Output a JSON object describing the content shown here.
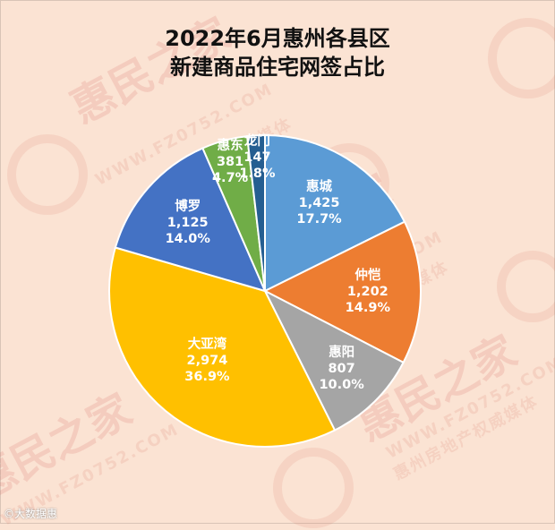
{
  "title": {
    "line1": "2022年6月惠州各县区",
    "line2": "新建商品住宅网签占比"
  },
  "chart_data": {
    "type": "pie",
    "title": "2022年6月惠州各县区新建商品住宅网签占比",
    "slices": [
      {
        "name": "惠城",
        "value": 1425,
        "value_label": "1,425",
        "percent": "17.7%",
        "color": "#5b9bd5"
      },
      {
        "name": "仲恺",
        "value": 1202,
        "value_label": "1,202",
        "percent": "14.9%",
        "color": "#ed7d31"
      },
      {
        "name": "惠阳",
        "value": 807,
        "value_label": "807",
        "percent": "10.0%",
        "color": "#a5a5a5"
      },
      {
        "name": "大亚湾",
        "value": 2974,
        "value_label": "2,974",
        "percent": "36.9%",
        "color": "#ffc000"
      },
      {
        "name": "博罗",
        "value": 1125,
        "value_label": "1,125",
        "percent": "14.0%",
        "color": "#4472c4"
      },
      {
        "name": "惠东",
        "value": 381,
        "value_label": "381",
        "percent": "4.7%",
        "color": "#70ad47"
      },
      {
        "name": "龙门",
        "value": 147,
        "value_label": "147",
        "percent": "1.8%",
        "color": "#255e91"
      }
    ]
  },
  "watermark": {
    "brand": "惠民之家",
    "site": "WWW.FZ0752.COM",
    "tagline": "惠州房地产权威媒体"
  },
  "source": "©大数据惠"
}
